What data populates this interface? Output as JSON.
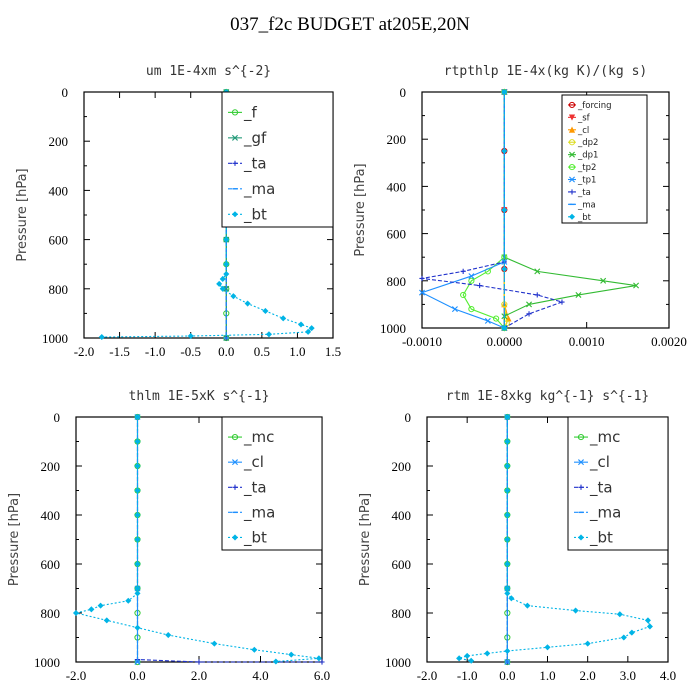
{
  "title": "037_f2c  BUDGET at205E,20N",
  "chart_data": [
    {
      "type": "line",
      "title": "um  1E-4xm s^{-2}",
      "ylabel": "Pressure [hPa]",
      "xlim": [
        -2.0,
        1.5
      ],
      "ylim": [
        1000,
        0
      ],
      "xticks": [
        "-2.0",
        "-1.5",
        "-1.0",
        "-0.5",
        "0.0",
        "0.5",
        "1.0",
        "1.5"
      ],
      "yticks": [
        "0",
        "200",
        "400",
        "600",
        "800",
        "1000"
      ],
      "grid": false,
      "legend_position": "top-right",
      "series": [
        {
          "name": "_f",
          "color": "#33cc33",
          "marker": "circle-open",
          "style": "solid",
          "points": [
            [
              0.0,
              0
            ],
            [
              0.0,
              100
            ],
            [
              0.0,
              200
            ],
            [
              0.0,
              300
            ],
            [
              0.0,
              400
            ],
            [
              0.0,
              500
            ],
            [
              0.0,
              600
            ],
            [
              0.0,
              700
            ],
            [
              0.0,
              800
            ],
            [
              0.0,
              900
            ],
            [
              0.0,
              1000
            ]
          ]
        },
        {
          "name": "_gf",
          "color": "#229977",
          "marker": "x",
          "style": "solid",
          "points": [
            [
              0.0,
              0
            ],
            [
              0.0,
              200
            ],
            [
              0.0,
              400
            ],
            [
              0.0,
              600
            ],
            [
              0.0,
              800
            ],
            [
              0.0,
              1000
            ]
          ]
        },
        {
          "name": "_ta",
          "color": "#2233cc",
          "marker": "plus",
          "style": "dashed",
          "points": [
            [
              0.0,
              0
            ],
            [
              0.0,
              500
            ],
            [
              0.0,
              1000
            ]
          ]
        },
        {
          "name": "_ma",
          "color": "#1e90ff",
          "marker": "dash",
          "style": "dashed",
          "points": [
            [
              0.0,
              0
            ],
            [
              0.0,
              500
            ],
            [
              0.0,
              1000
            ]
          ]
        },
        {
          "name": "_bt",
          "color": "#00b4e6",
          "marker": "diamond",
          "style": "dotted",
          "points": [
            [
              0.0,
              0
            ],
            [
              0.0,
              100
            ],
            [
              0.0,
              200
            ],
            [
              0.0,
              300
            ],
            [
              0.0,
              400
            ],
            [
              0.0,
              500
            ],
            [
              0.0,
              600
            ],
            [
              0.0,
              700
            ],
            [
              0.0,
              740
            ],
            [
              -0.05,
              760
            ],
            [
              -0.1,
              780
            ],
            [
              -0.05,
              800
            ],
            [
              0.1,
              830
            ],
            [
              0.3,
              860
            ],
            [
              0.55,
              890
            ],
            [
              0.8,
              920
            ],
            [
              1.05,
              945
            ],
            [
              1.2,
              960
            ],
            [
              1.15,
              975
            ],
            [
              0.6,
              985
            ],
            [
              -0.5,
              992
            ],
            [
              -1.75,
              996
            ]
          ]
        }
      ]
    },
    {
      "type": "line",
      "title": "rtpthlp  1E-4x(kg K)/(kg s)",
      "ylabel": "Pressure [hPa]",
      "xlim": [
        -0.001,
        0.002
      ],
      "ylim": [
        1000,
        0
      ],
      "xticks": [
        "-0.0010",
        "0.0000",
        "0.0010",
        "0.0020"
      ],
      "yticks": [
        "0",
        "200",
        "400",
        "600",
        "800",
        "1000"
      ],
      "grid": false,
      "legend_position": "top-right",
      "series": [
        {
          "name": "_forcing",
          "color": "#cc0000",
          "marker": "circle-open",
          "style": "solid",
          "points": [
            [
              0.0,
              0
            ],
            [
              0.0,
              250
            ],
            [
              0.0,
              500
            ],
            [
              0.0,
              750
            ],
            [
              0.0,
              1000
            ]
          ]
        },
        {
          "name": "_sf",
          "color": "#ee3333",
          "marker": "triangle-down",
          "style": "solid",
          "points": [
            [
              0.0,
              0
            ],
            [
              0.0,
              500
            ],
            [
              0.0,
              1000
            ]
          ]
        },
        {
          "name": "_cl",
          "color": "#ff9900",
          "marker": "triangle",
          "style": "solid",
          "points": [
            [
              0.0,
              0
            ],
            [
              0.0,
              900
            ],
            [
              5e-05,
              960
            ],
            [
              0.0,
              1000
            ]
          ]
        },
        {
          "name": "_dp2",
          "color": "#dddd22",
          "marker": "circle-open",
          "style": "solid",
          "points": [
            [
              0.0,
              0
            ],
            [
              0.0,
              900
            ],
            [
              3e-05,
              980
            ],
            [
              0.0,
              1000
            ]
          ]
        },
        {
          "name": "_dp1",
          "color": "#33bb33",
          "marker": "x",
          "style": "solid",
          "points": [
            [
              0.0,
              0
            ],
            [
              0.0,
              700
            ],
            [
              0.0004,
              760
            ],
            [
              0.0012,
              800
            ],
            [
              0.0016,
              820
            ],
            [
              0.0009,
              860
            ],
            [
              0.0003,
              900
            ],
            [
              0.0,
              950
            ],
            [
              0.0,
              1000
            ]
          ]
        },
        {
          "name": "_tp2",
          "color": "#55ee33",
          "marker": "circle-open",
          "style": "solid",
          "points": [
            [
              0.0,
              0
            ],
            [
              0.0,
              700
            ],
            [
              -0.0002,
              760
            ],
            [
              -0.0004,
              800
            ],
            [
              -0.0005,
              860
            ],
            [
              -0.0004,
              920
            ],
            [
              -0.0001,
              960
            ],
            [
              0.0,
              1000
            ]
          ]
        },
        {
          "name": "_tp1",
          "color": "#1e90ff",
          "marker": "x",
          "style": "solid",
          "points": [
            [
              0.0,
              0
            ],
            [
              0.0,
              720
            ],
            [
              -0.0004,
              780
            ],
            [
              -0.001,
              850
            ],
            [
              -0.0006,
              920
            ],
            [
              -0.0002,
              970
            ],
            [
              0.0,
              1000
            ]
          ]
        },
        {
          "name": "_ta",
          "color": "#2233cc",
          "marker": "plus",
          "style": "dashed",
          "points": [
            [
              0.0,
              0
            ],
            [
              0.0,
              720
            ],
            [
              -0.0005,
              760
            ],
            [
              -0.001,
              790
            ],
            [
              -0.0003,
              820
            ],
            [
              0.0004,
              860
            ],
            [
              0.0007,
              890
            ],
            [
              0.0003,
              940
            ],
            [
              0.0,
              1000
            ]
          ]
        },
        {
          "name": "_ma",
          "color": "#1e90ff",
          "marker": "dash",
          "style": "dashed",
          "points": [
            [
              0.0,
              0
            ],
            [
              0.0,
              500
            ],
            [
              0.0,
              1000
            ]
          ]
        },
        {
          "name": "_bt",
          "color": "#00b4e6",
          "marker": "diamond",
          "style": "dotted",
          "points": [
            [
              0.0,
              0
            ],
            [
              0.0,
              250
            ],
            [
              0.0,
              500
            ],
            [
              0.0,
              750
            ],
            [
              0.0,
              1000
            ]
          ]
        }
      ]
    },
    {
      "type": "line",
      "title": "thlm  1E-5xK s^{-1}",
      "ylabel": "Pressure [hPa]",
      "xlim": [
        -2.0,
        6.0
      ],
      "ylim": [
        1000,
        0
      ],
      "xticks": [
        "-2.0",
        "0.0",
        "2.0",
        "4.0",
        "6.0"
      ],
      "yticks": [
        "0",
        "200",
        "400",
        "600",
        "800",
        "1000"
      ],
      "grid": false,
      "legend_position": "top-right",
      "series": [
        {
          "name": "_mc",
          "color": "#33cc33",
          "marker": "circle-open",
          "style": "solid",
          "points": [
            [
              0.0,
              0
            ],
            [
              0.0,
              100
            ],
            [
              0.0,
              200
            ],
            [
              0.0,
              300
            ],
            [
              0.0,
              400
            ],
            [
              0.0,
              500
            ],
            [
              0.0,
              600
            ],
            [
              0.0,
              700
            ],
            [
              0.0,
              800
            ],
            [
              0.0,
              900
            ],
            [
              0.0,
              1000
            ]
          ]
        },
        {
          "name": "_cl",
          "color": "#1e90ff",
          "marker": "x",
          "style": "solid",
          "points": [
            [
              0.0,
              0
            ],
            [
              0.0,
              700
            ],
            [
              0.0,
              1000
            ]
          ]
        },
        {
          "name": "_ta",
          "color": "#2233cc",
          "marker": "plus",
          "style": "dashed",
          "points": [
            [
              0.0,
              0
            ],
            [
              0.0,
              990
            ],
            [
              2.0,
              1000
            ],
            [
              6.0,
              1000
            ]
          ]
        },
        {
          "name": "_ma",
          "color": "#1e90ff",
          "marker": "dash",
          "style": "dashed",
          "points": [
            [
              0.0,
              0
            ],
            [
              0.0,
              500
            ],
            [
              0.0,
              1000
            ]
          ]
        },
        {
          "name": "_bt",
          "color": "#00b4e6",
          "marker": "diamond",
          "style": "dotted",
          "points": [
            [
              0.0,
              0
            ],
            [
              0.0,
              100
            ],
            [
              0.0,
              200
            ],
            [
              0.0,
              300
            ],
            [
              0.0,
              400
            ],
            [
              0.0,
              500
            ],
            [
              0.0,
              600
            ],
            [
              0.0,
              700
            ],
            [
              0.0,
              720
            ],
            [
              -0.3,
              750
            ],
            [
              -1.2,
              770
            ],
            [
              -1.5,
              785
            ],
            [
              -2.0,
              800
            ],
            [
              -1.0,
              830
            ],
            [
              0.0,
              860
            ],
            [
              1.0,
              890
            ],
            [
              2.5,
              925
            ],
            [
              3.8,
              950
            ],
            [
              5.0,
              970
            ],
            [
              5.9,
              985
            ],
            [
              4.5,
              998
            ]
          ]
        }
      ]
    },
    {
      "type": "line",
      "title": "rtm  1E-8xkg kg^{-1} s^{-1}",
      "ylabel": "Pressure [hPa]",
      "xlim": [
        -2.0,
        4.0
      ],
      "ylim": [
        1000,
        0
      ],
      "xticks": [
        "-2.0",
        "-1.0",
        "0.0",
        "1.0",
        "2.0",
        "3.0",
        "4.0"
      ],
      "yticks": [
        "0",
        "200",
        "400",
        "600",
        "800",
        "1000"
      ],
      "grid": false,
      "legend_position": "top-right",
      "series": [
        {
          "name": "_mc",
          "color": "#33cc33",
          "marker": "circle-open",
          "style": "solid",
          "points": [
            [
              0.0,
              0
            ],
            [
              0.0,
              100
            ],
            [
              0.0,
              200
            ],
            [
              0.0,
              300
            ],
            [
              0.0,
              400
            ],
            [
              0.0,
              500
            ],
            [
              0.0,
              600
            ],
            [
              0.0,
              700
            ],
            [
              0.0,
              800
            ],
            [
              0.0,
              900
            ],
            [
              0.0,
              1000
            ]
          ]
        },
        {
          "name": "_cl",
          "color": "#1e90ff",
          "marker": "x",
          "style": "solid",
          "points": [
            [
              0.0,
              0
            ],
            [
              0.0,
              700
            ],
            [
              0.0,
              1000
            ]
          ]
        },
        {
          "name": "_ta",
          "color": "#2233cc",
          "marker": "plus",
          "style": "dashed",
          "points": [
            [
              0.0,
              0
            ],
            [
              0.0,
              500
            ],
            [
              0.0,
              1000
            ]
          ]
        },
        {
          "name": "_ma",
          "color": "#1e90ff",
          "marker": "dash",
          "style": "dashed",
          "points": [
            [
              0.0,
              0
            ],
            [
              0.0,
              500
            ],
            [
              0.0,
              1000
            ]
          ]
        },
        {
          "name": "_bt",
          "color": "#00b4e6",
          "marker": "diamond",
          "style": "dotted",
          "points": [
            [
              0.0,
              0
            ],
            [
              0.0,
              100
            ],
            [
              0.0,
              200
            ],
            [
              0.0,
              300
            ],
            [
              0.0,
              400
            ],
            [
              0.0,
              500
            ],
            [
              0.0,
              600
            ],
            [
              0.0,
              700
            ],
            [
              0.0,
              720
            ],
            [
              0.1,
              740
            ],
            [
              0.5,
              770
            ],
            [
              1.7,
              790
            ],
            [
              2.8,
              805
            ],
            [
              3.5,
              830
            ],
            [
              3.55,
              855
            ],
            [
              3.1,
              880
            ],
            [
              2.9,
              900
            ],
            [
              2.0,
              925
            ],
            [
              1.0,
              940
            ],
            [
              0.0,
              955
            ],
            [
              -0.5,
              965
            ],
            [
              -1.0,
              975
            ],
            [
              -1.2,
              985
            ],
            [
              -0.9,
              995
            ]
          ]
        }
      ]
    }
  ]
}
